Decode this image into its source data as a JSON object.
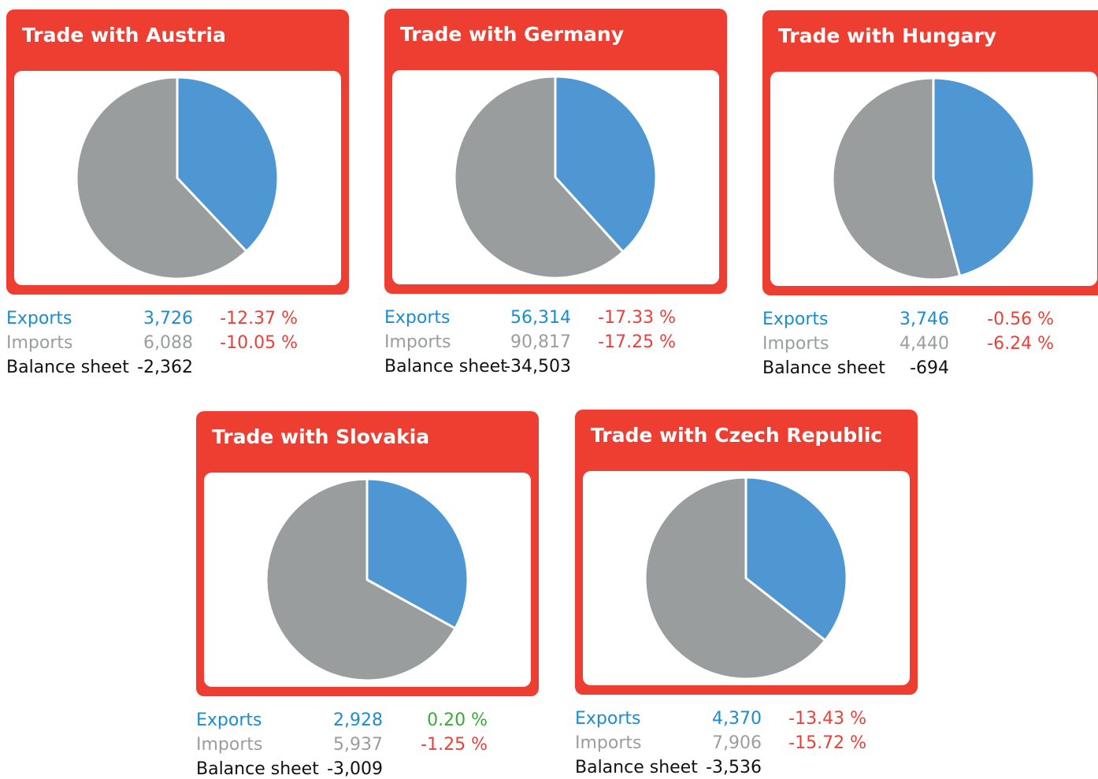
{
  "chart_data": [
    {
      "type": "pie",
      "title": "Trade with Austria",
      "categories": [
        "Exports",
        "Imports"
      ],
      "values": [
        3726,
        6088
      ],
      "value_labels": [
        "3,726",
        "6,088"
      ],
      "changes": [
        -12.37,
        -10.05
      ],
      "change_labels": [
        "-12.37 %",
        "-10.05 %"
      ],
      "balance_label": "Balance sheet",
      "balance": -2362,
      "balance_value_label": "-2,362",
      "colors": [
        "#4f97d2",
        "#9a9d9e"
      ]
    },
    {
      "type": "pie",
      "title": "Trade with Germany",
      "categories": [
        "Exports",
        "Imports"
      ],
      "values": [
        56314,
        90817
      ],
      "value_labels": [
        "56,314",
        "90,817"
      ],
      "changes": [
        -17.33,
        -17.25
      ],
      "change_labels": [
        "-17.33 %",
        "-17.25 %"
      ],
      "balance_label": "Balance sheet",
      "balance": -34503,
      "balance_value_label": "-34,503",
      "colors": [
        "#4f97d2",
        "#9a9d9e"
      ]
    },
    {
      "type": "pie",
      "title": "Trade with Hungary",
      "categories": [
        "Exports",
        "Imports"
      ],
      "values": [
        3746,
        4440
      ],
      "value_labels": [
        "3,746",
        "4,440"
      ],
      "changes": [
        -0.56,
        -6.24
      ],
      "change_labels": [
        "-0.56 %",
        "-6.24 %"
      ],
      "balance_label": "Balance sheet",
      "balance": -694,
      "balance_value_label": "-694",
      "colors": [
        "#4f97d2",
        "#9a9d9e"
      ]
    },
    {
      "type": "pie",
      "title": "Trade with Slovakia",
      "categories": [
        "Exports",
        "Imports"
      ],
      "values": [
        2928,
        5937
      ],
      "value_labels": [
        "2,928",
        "5,937"
      ],
      "changes": [
        0.2,
        -1.25
      ],
      "change_labels": [
        "0.20 %",
        "-1.25 %"
      ],
      "balance_label": "Balance sheet",
      "balance": -3009,
      "balance_value_label": "-3,009",
      "colors": [
        "#4f97d2",
        "#9a9d9e"
      ]
    },
    {
      "type": "pie",
      "title": "Trade with Czech Republic",
      "categories": [
        "Exports",
        "Imports"
      ],
      "values": [
        4370,
        7906
      ],
      "value_labels": [
        "4,370",
        "7,906"
      ],
      "changes": [
        -13.43,
        -15.72
      ],
      "change_labels": [
        "-13.43 %",
        "-15.72 %"
      ],
      "balance_label": "Balance sheet",
      "balance": -3536,
      "balance_value_label": "-3,536",
      "colors": [
        "#4f97d2",
        "#9a9d9e"
      ]
    }
  ]
}
